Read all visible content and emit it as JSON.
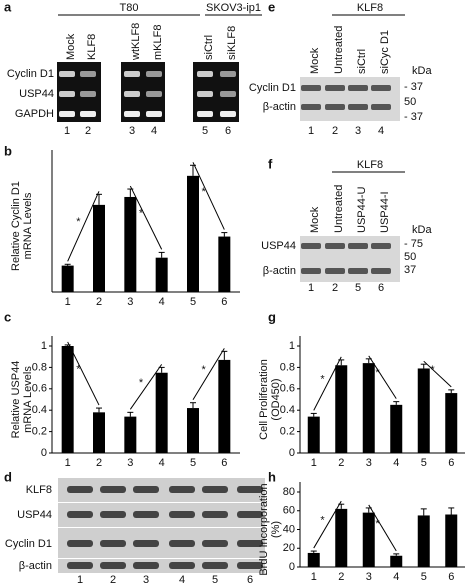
{
  "panels": {
    "a": {
      "letter": "a",
      "groups": [
        "T80",
        "SKOV3-ip1"
      ],
      "columns": [
        "Mock",
        "KLF8",
        "wtKLF8",
        "mKLF8",
        "siCtrl",
        "siKLF8"
      ],
      "rows": [
        "Cyclin D1",
        "USP44",
        "GAPDH"
      ],
      "lanes": [
        "1",
        "2",
        "3",
        "4",
        "5",
        "6"
      ]
    },
    "e": {
      "letter": "e",
      "group": "KLF8",
      "columns": [
        "Mock",
        "Untreated",
        "siCtrl",
        "siCyc D1"
      ],
      "rows": [
        "Cyclin D1",
        "β-actin"
      ],
      "unit": "kDa",
      "markers": [
        "- 37",
        "50",
        "- 37"
      ],
      "lanes": [
        "1",
        "2",
        "3",
        "4"
      ]
    },
    "f": {
      "letter": "f",
      "group": "KLF8",
      "columns": [
        "Mock",
        "Untreated",
        "USP44-U",
        "USP44-I"
      ],
      "rows": [
        "USP44",
        "β-actin"
      ],
      "unit": "kDa",
      "markers": [
        "- 75",
        "50",
        "37"
      ],
      "lanes": [
        "1",
        "2",
        "5",
        "6"
      ]
    },
    "d": {
      "letter": "d",
      "rows": [
        "KLF8",
        "USP44",
        "Cyclin D1",
        "β-actin"
      ],
      "lanes": [
        "1",
        "2",
        "3",
        "4",
        "5",
        "6"
      ]
    }
  },
  "chart_data": [
    {
      "type": "bar",
      "label": "b",
      "y_label": [
        "Relative Cyclin D1",
        "mRNA Levels"
      ],
      "categories": [
        "1",
        "2",
        "3",
        "4",
        "5",
        "6"
      ],
      "values": [
        1.0,
        3.3,
        3.6,
        1.3,
        4.4,
        2.1
      ],
      "errors": [
        0.05,
        0.4,
        0.3,
        0.2,
        0.4,
        0.15
      ],
      "ylim": [
        0,
        5
      ],
      "color": "#000000",
      "annotations": [
        "*",
        "*",
        "*"
      ]
    },
    {
      "type": "bar",
      "label": "c",
      "y_label": [
        "Relative USP44",
        "mRNA Levels"
      ],
      "categories": [
        "1",
        "2",
        "3",
        "4",
        "5",
        "6"
      ],
      "values": [
        1.0,
        0.38,
        0.34,
        0.75,
        0.42,
        0.87
      ],
      "errors": [
        0.01,
        0.04,
        0.04,
        0.05,
        0.05,
        0.08
      ],
      "ylim": [
        0,
        1
      ],
      "yticks": [
        0,
        0.2,
        0.4,
        0.6,
        0.8,
        1
      ],
      "color": "#000000",
      "annotations": [
        "*",
        "*",
        "*"
      ]
    },
    {
      "type": "bar",
      "label": "g",
      "y_label": [
        "Cell Proliferation",
        "(OD450)"
      ],
      "categories": [
        "1",
        "2",
        "3",
        "4",
        "5",
        "6"
      ],
      "values": [
        0.34,
        0.82,
        0.84,
        0.45,
        0.79,
        0.56
      ],
      "errors": [
        0.03,
        0.05,
        0.04,
        0.03,
        0.04,
        0.03
      ],
      "ylim": [
        0,
        1
      ],
      "yticks": [
        0,
        0.2,
        0.4,
        0.6,
        0.8,
        1
      ],
      "color": "#000000",
      "annotations": [
        "*",
        "*",
        "*"
      ]
    },
    {
      "type": "bar",
      "label": "h",
      "y_label": [
        "BrdU Incorporation",
        "(%)"
      ],
      "categories": [
        "1",
        "2",
        "3",
        "4",
        "5",
        "6"
      ],
      "values": [
        15,
        62,
        58,
        12,
        55,
        56
      ],
      "errors": [
        2,
        5,
        5,
        2,
        7,
        7
      ],
      "ylim": [
        0,
        80
      ],
      "yticks": [
        0,
        20,
        40,
        60,
        80
      ],
      "color": "#000000",
      "annotations": [
        "*",
        "*"
      ]
    }
  ]
}
